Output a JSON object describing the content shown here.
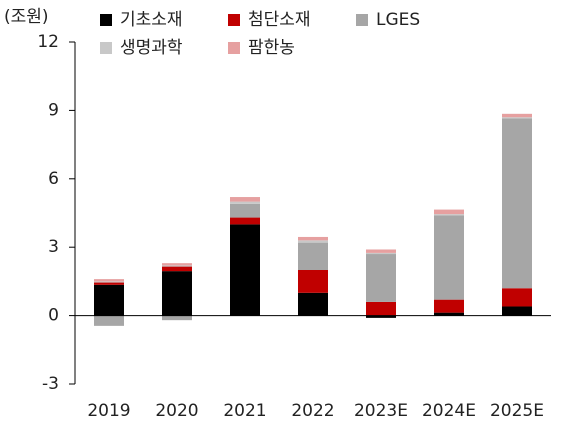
{
  "chart_data": {
    "type": "bar",
    "stacked": true,
    "unit_label": "(조원)",
    "categories": [
      "2019",
      "2020",
      "2021",
      "2022",
      "2023E",
      "2024E",
      "2025E"
    ],
    "series": [
      {
        "name": "기초소재",
        "color": "#000000",
        "values": [
          1.35,
          1.95,
          4.0,
          1.0,
          -0.1,
          0.13,
          0.4
        ]
      },
      {
        "name": "첨단소재",
        "color": "#c00000",
        "values": [
          0.1,
          0.2,
          0.3,
          1.0,
          0.6,
          0.57,
          0.8
        ]
      },
      {
        "name": "LGES",
        "color": "#a6a6a6",
        "values": [
          -0.45,
          -0.2,
          0.6,
          1.2,
          2.1,
          3.7,
          7.45
        ]
      },
      {
        "name": "생명과학",
        "color": "#c8c8c8",
        "values": [
          0.05,
          0.05,
          0.1,
          0.1,
          0.05,
          0.05,
          0.05
        ]
      },
      {
        "name": "팜한농",
        "color": "#e6a0a0",
        "values": [
          0.1,
          0.1,
          0.2,
          0.15,
          0.15,
          0.2,
          0.15
        ]
      }
    ],
    "ylim": [
      -3,
      12
    ],
    "yticks": [
      -3,
      0,
      3,
      6,
      9,
      12
    ]
  }
}
